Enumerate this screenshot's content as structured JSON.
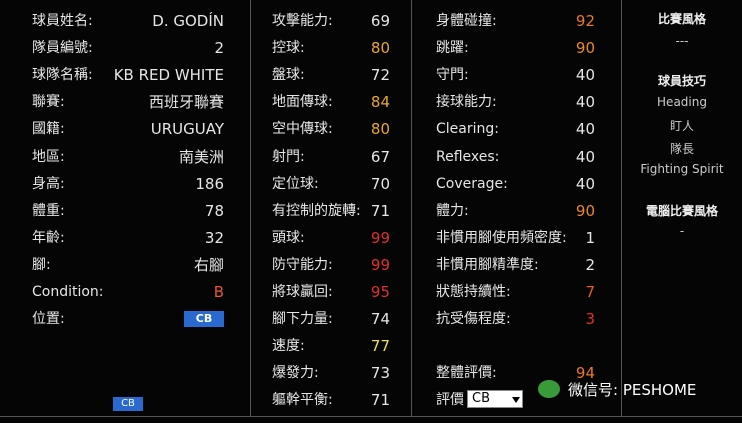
{
  "profile": [
    {
      "label": "球員姓名:",
      "value": "D. GODÍN"
    },
    {
      "label": "隊員編號:",
      "value": 2
    },
    {
      "label": "球隊名稱:",
      "value": "KB RED WHITE"
    },
    {
      "label": "聯賽:",
      "value": "西班牙聯賽"
    },
    {
      "label": "國籍:",
      "value": "URUGUAY"
    },
    {
      "label": "地區:",
      "value": "南美洲"
    },
    {
      "label": "身高:",
      "value": 186
    },
    {
      "label": "體重:",
      "value": 78
    },
    {
      "label": "年齡:",
      "value": 32
    },
    {
      "label": "腳:",
      "value": "右腳"
    },
    {
      "label": "Condition:",
      "value": "B",
      "color": "#e8582a"
    },
    {
      "label": "位置:",
      "value": "CB",
      "badge": "#2a6ad0"
    }
  ],
  "position_map": {
    "selected": "CB"
  },
  "stats_1": [
    {
      "label": "攻擊能力:",
      "value": 69
    },
    {
      "label": "控球:",
      "value": 80,
      "color": "#e8a830"
    },
    {
      "label": "盤球:",
      "value": 72
    },
    {
      "label": "地面傳球:",
      "value": 84,
      "color": "#e8a830"
    },
    {
      "label": "空中傳球:",
      "value": 80,
      "color": "#e8a830"
    },
    {
      "label": "射門:",
      "value": 67
    },
    {
      "label": "定位球:",
      "value": 70
    },
    {
      "label": "有控制的旋轉:",
      "value": 71
    },
    {
      "label": "頭球:",
      "value": 99,
      "color": "#e03030"
    },
    {
      "label": "防守能力:",
      "value": 99,
      "color": "#e03030"
    },
    {
      "label": "將球贏回:",
      "value": 95,
      "color": "#e03030"
    },
    {
      "label": "腳下力量:",
      "value": 74
    },
    {
      "label": "速度:",
      "value": 77,
      "color": "#e8e050"
    },
    {
      "label": "爆發力:",
      "value": 73
    },
    {
      "label": "軀幹平衡:",
      "value": 71
    }
  ],
  "stats_2": [
    {
      "label": "身體碰撞:",
      "value": 92,
      "color": "#e8782a"
    },
    {
      "label": "跳躍:",
      "value": 90,
      "color": "#e8882a"
    },
    {
      "label": "守門:",
      "value": 40
    },
    {
      "label": "接球能力:",
      "value": 40
    },
    {
      "label": "Clearing:",
      "value": 40
    },
    {
      "label": "Reflexes:",
      "value": 40
    },
    {
      "label": "Coverage:",
      "value": 40
    },
    {
      "label": "體力:",
      "value": 90,
      "color": "#e8882a"
    },
    {
      "label": "非慣用腳使用頻密度:",
      "value": 1
    },
    {
      "label": "非慣用腳精準度:",
      "value": 2
    },
    {
      "label": "狀態持續性:",
      "value": 7,
      "color": "#e8582a"
    },
    {
      "label": "抗受傷程度:",
      "value": 3,
      "color": "#e03030"
    }
  ],
  "overall": {
    "label": "整體評價:",
    "value": 94,
    "color": "#e8782a"
  },
  "rating": {
    "label": "評價",
    "selected": "CB"
  },
  "side": {
    "style_title": "比賽風格",
    "style": "---",
    "skills_title": "球員技巧",
    "skills": [
      "Heading",
      "盯人",
      "隊長",
      "Fighting Spirit"
    ],
    "ai_title": "電腦比賽風格",
    "ai_style": "-"
  },
  "watermark": "微信号: PESHOME"
}
